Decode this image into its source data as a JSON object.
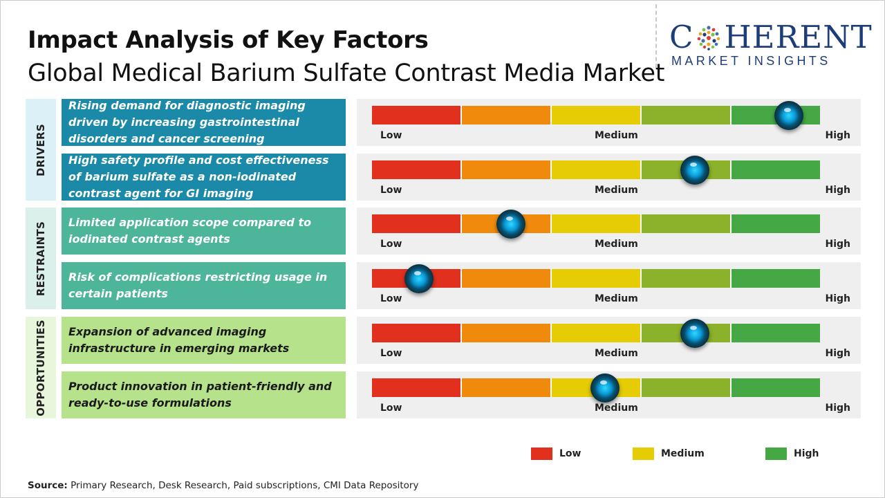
{
  "header": {
    "title": "Impact Analysis of Key Factors",
    "subtitle": "Global Medical Barium Sulfate Contrast Media Market"
  },
  "logo": {
    "word_first": "C",
    "word_rest": "HERENT",
    "tagline": "MARKET INSIGHTS",
    "brand_color": "#1d3d78"
  },
  "colors": {
    "segments": [
      "#e2301f",
      "#ef8a0c",
      "#e6cc05",
      "#8bb22a",
      "#45a845"
    ],
    "drivers_bg": "#1a8aa8",
    "drivers_cat_bg": "#dcf0f7",
    "restraints_bg": "#4db59a",
    "restraints_cat_bg": "#dbf0ea",
    "opportunities_bg": "#b6e28b",
    "opportunities_cat_bg": "#e8f6dc"
  },
  "chart_data": {
    "type": "gauge",
    "scale_labels": {
      "low": "Low",
      "medium": "Medium",
      "high": "High"
    },
    "categories": [
      {
        "name": "DRIVERS",
        "factors": [
          {
            "text": "Rising demand for diagnostic imaging driven by increasing gastrointestinal disorders and cancer screening",
            "impact": 0.93
          },
          {
            "text": "High safety profile and cost effectiveness of barium sulfate as a non-iodinated contrast agent for GI imaging",
            "impact": 0.72
          }
        ]
      },
      {
        "name": "RESTRAINTS",
        "factors": [
          {
            "text": "Limited application scope compared to iodinated contrast agents",
            "impact": 0.31
          },
          {
            "text": "Risk of complications restricting usage in certain patients",
            "impact": 0.105
          }
        ]
      },
      {
        "name": "OPPORTUNITIES",
        "factors": [
          {
            "text": "Expansion of advanced imaging infrastructure in emerging markets",
            "impact": 0.72
          },
          {
            "text": "Product innovation in patient-friendly and ready-to-use formulations",
            "impact": 0.52
          }
        ]
      }
    ],
    "legend": [
      {
        "label": "Low",
        "color": "#e2301f"
      },
      {
        "label": "Medium",
        "color": "#e6cc05"
      },
      {
        "label": "High",
        "color": "#45a845"
      }
    ],
    "legend_position": "bottom-right"
  },
  "source": {
    "label": "Source:",
    "text": "Primary Research, Desk Research, Paid subscriptions, CMI Data Repository"
  }
}
